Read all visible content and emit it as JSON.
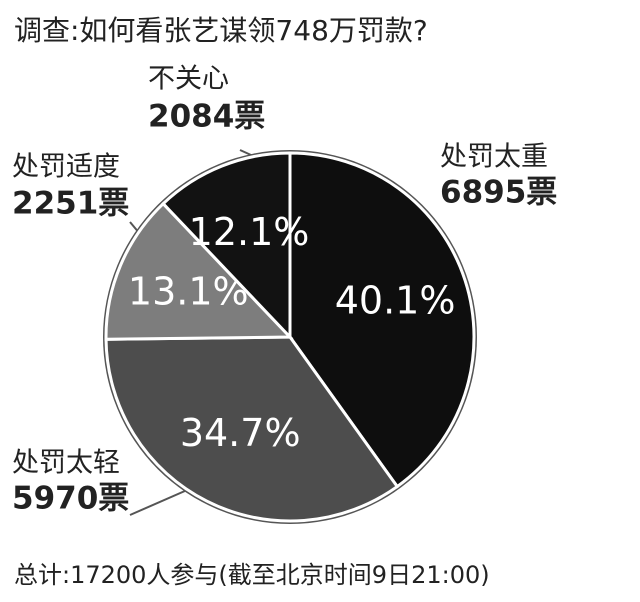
{
  "chart_data": {
    "type": "pie",
    "title": "调查:如何看张艺谋领748万罚款?",
    "categories": [
      "处罚太重",
      "处罚太轻",
      "处罚适度",
      "不关心"
    ],
    "values": [
      40.1,
      34.7,
      13.1,
      12.1
    ],
    "value_labels": [
      "40.1%",
      "34.7%",
      "13.1%",
      "12.1%"
    ],
    "vote_labels": [
      "6895票",
      "5970票",
      "2251票",
      "2084票"
    ],
    "colors": [
      "#0e0e0e",
      "#4d4d4d",
      "#7d7d7d",
      "#121212"
    ],
    "note": "总计:17200人参与(截至北京时间9日21:00)"
  }
}
